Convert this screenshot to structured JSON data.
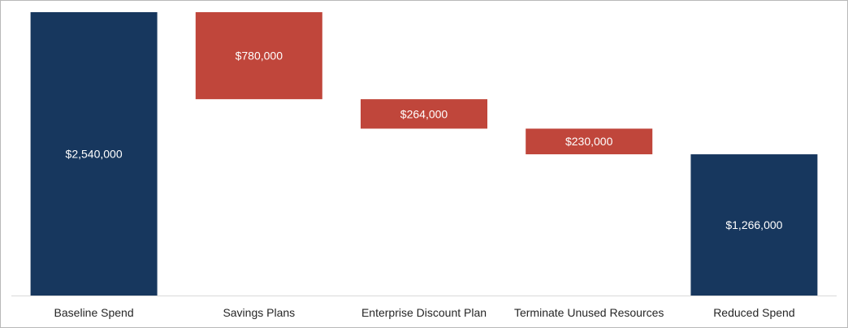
{
  "chart_data": {
    "type": "waterfall",
    "title": "",
    "xlabel": "",
    "ylabel": "",
    "ylim": [
      0,
      2540000
    ],
    "grid": false,
    "legend": "none",
    "categories": [
      "Baseline Spend",
      "Savings Plans",
      "Enterprise Discount Plan",
      "Terminate Unused Resources",
      "Reduced Spend"
    ],
    "bars": [
      {
        "category": "Baseline Spend",
        "kind": "total",
        "start": 0,
        "end": 2540000,
        "label": "$2,540,000"
      },
      {
        "category": "Savings Plans",
        "kind": "decrease",
        "start": 2540000,
        "end": 1760000,
        "label": "$780,000"
      },
      {
        "category": "Enterprise Discount Plan",
        "kind": "decrease",
        "start": 1760000,
        "end": 1496000,
        "label": "$264,000"
      },
      {
        "category": "Terminate Unused Resources",
        "kind": "decrease",
        "start": 1496000,
        "end": 1266000,
        "label": "$230,000"
      },
      {
        "category": "Reduced Spend",
        "kind": "total",
        "start": 0,
        "end": 1266000,
        "label": "$1,266,000"
      }
    ],
    "colors": {
      "total": "#17375e",
      "decrease": "#c0463b",
      "axis": "#d9d9d9"
    }
  }
}
